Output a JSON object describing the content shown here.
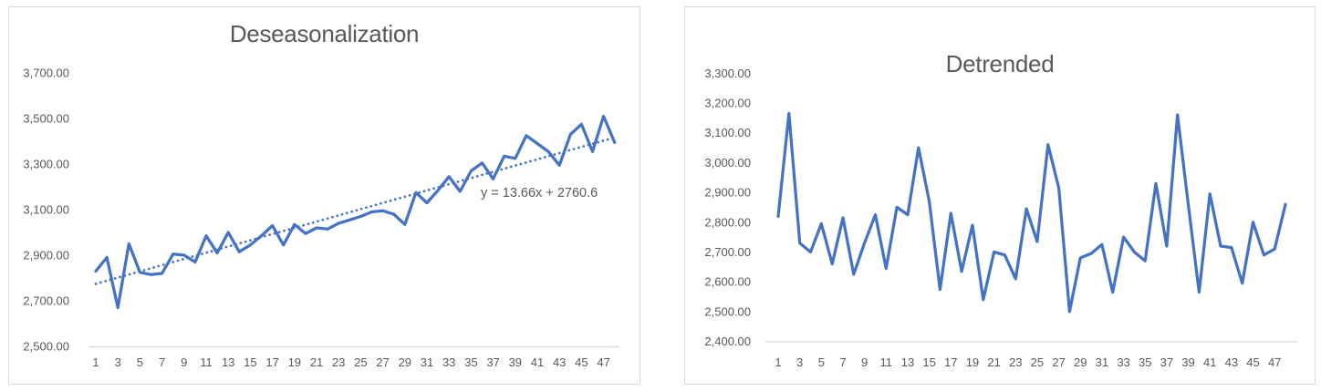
{
  "styles": {
    "line_color": "#4472C4",
    "text_color": "#595959",
    "axis_line_color": "#d9d9d9",
    "border_color": "#d9d9d9",
    "background": "#ffffff"
  },
  "chart_data": [
    {
      "type": "line",
      "title": "Deseasonalization",
      "xlabel": "",
      "ylabel": "",
      "grid": false,
      "legend": "none",
      "line_color": "#4472C4",
      "ylim": [
        2500,
        3700
      ],
      "ytick_step": 200,
      "ytick_labels": [
        "3,700.00",
        "3,500.00",
        "3,300.00",
        "3,100.00",
        "2,900.00",
        "2,700.00",
        "2,500.00"
      ],
      "xtick_labels": [
        "1",
        "3",
        "5",
        "7",
        "9",
        "11",
        "13",
        "15",
        "17",
        "19",
        "21",
        "23",
        "25",
        "27",
        "29",
        "31",
        "33",
        "35",
        "37",
        "39",
        "41",
        "43",
        "45",
        "47"
      ],
      "x": [
        1,
        2,
        3,
        4,
        5,
        6,
        7,
        8,
        9,
        10,
        11,
        12,
        13,
        14,
        15,
        16,
        17,
        18,
        19,
        20,
        21,
        22,
        23,
        24,
        25,
        26,
        27,
        28,
        29,
        30,
        31,
        32,
        33,
        34,
        35,
        36,
        37,
        38,
        39,
        40,
        41,
        42,
        43,
        44,
        45,
        46,
        47,
        48
      ],
      "values": [
        2830,
        2890,
        2670,
        2950,
        2825,
        2815,
        2820,
        2905,
        2900,
        2870,
        2985,
        2910,
        3000,
        2915,
        2945,
        2985,
        3030,
        2945,
        3035,
        2995,
        3020,
        3015,
        3040,
        3055,
        3070,
        3090,
        3095,
        3080,
        3035,
        3175,
        3130,
        3185,
        3245,
        3180,
        3270,
        3305,
        3235,
        3335,
        3325,
        3425,
        3390,
        3355,
        3295,
        3430,
        3475,
        3355,
        3510,
        3395
      ],
      "trendline": {
        "style": "dotted",
        "color": "#4472C4",
        "slope": 13.66,
        "intercept": 2760.6,
        "equation_label": "y = 13.66x + 2760.6"
      }
    },
    {
      "type": "line",
      "title": "Detrended",
      "xlabel": "",
      "ylabel": "",
      "grid": false,
      "legend": "none",
      "line_color": "#4472C4",
      "ylim": [
        2400,
        3300
      ],
      "ytick_step": 100,
      "ytick_labels": [
        "3,300.00",
        "3,200.00",
        "3,100.00",
        "3,000.00",
        "2,900.00",
        "2,800.00",
        "2,700.00",
        "2,600.00",
        "2,500.00",
        "2,400.00"
      ],
      "xtick_labels": [
        "1",
        "3",
        "5",
        "7",
        "9",
        "11",
        "13",
        "15",
        "17",
        "19",
        "21",
        "23",
        "25",
        "27",
        "29",
        "31",
        "33",
        "35",
        "37",
        "39",
        "41",
        "43",
        "45",
        "47"
      ],
      "x": [
        1,
        2,
        3,
        4,
        5,
        6,
        7,
        8,
        9,
        10,
        11,
        12,
        13,
        14,
        15,
        16,
        17,
        18,
        19,
        20,
        21,
        22,
        23,
        24,
        25,
        26,
        27,
        28,
        29,
        30,
        31,
        32,
        33,
        34,
        35,
        36,
        37,
        38,
        39,
        40,
        41,
        42,
        43,
        44,
        45,
        46,
        47,
        48
      ],
      "values": [
        2820,
        3165,
        2730,
        2700,
        2795,
        2660,
        2815,
        2625,
        2730,
        2825,
        2645,
        2850,
        2825,
        3050,
        2870,
        2575,
        2830,
        2635,
        2790,
        2540,
        2700,
        2690,
        2610,
        2845,
        2735,
        3060,
        2915,
        2500,
        2680,
        2695,
        2725,
        2565,
        2750,
        2700,
        2670,
        2930,
        2720,
        3160,
        2860,
        2565,
        2895,
        2720,
        2715,
        2595,
        2800,
        2690,
        2710,
        2860
      ]
    }
  ]
}
